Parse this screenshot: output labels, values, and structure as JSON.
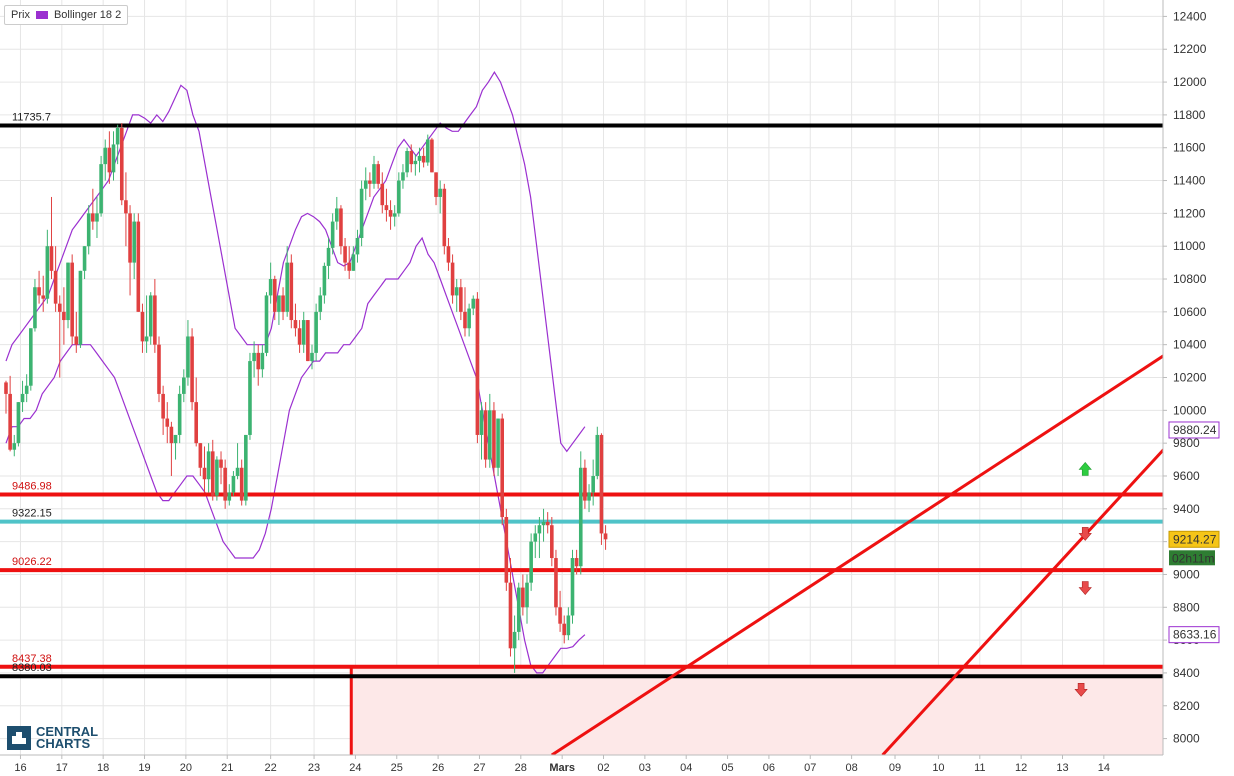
{
  "legend": {
    "price_label": "Prix",
    "indicator_label": "Bollinger 18 2",
    "indicator_color": "#9b30d0"
  },
  "logo": {
    "line1": "CENTRAL",
    "line2": "CHARTS",
    "icon": "central-charts-logo-icon"
  },
  "colors": {
    "up": "#3cb371",
    "down": "#e04040",
    "bollinger": "#9b30d0",
    "resistance": "#ee1111",
    "support_black": "#000000",
    "current_line": "#4fc3c8",
    "zone_fill": "#fde8e8"
  },
  "chart_data": {
    "type": "candlestick",
    "y_axis": {
      "min": 7900,
      "max": 12500,
      "ticks": [
        8000,
        8200,
        8400,
        8600,
        8800,
        9000,
        9200,
        9400,
        9600,
        9800,
        10000,
        10200,
        10400,
        10600,
        10800,
        11000,
        11200,
        11400,
        11600,
        11800,
        12000,
        12200,
        12400
      ]
    },
    "x_ticks": [
      {
        "label": "16",
        "pos": 3.5
      },
      {
        "label": "17",
        "pos": 13.5
      },
      {
        "label": "18",
        "pos": 23.5
      },
      {
        "label": "19",
        "pos": 33.5
      },
      {
        "label": "20",
        "pos": 43.5
      },
      {
        "label": "21",
        "pos": 53.5
      },
      {
        "label": "22",
        "pos": 64
      },
      {
        "label": "23",
        "pos": 74.5
      },
      {
        "label": "24",
        "pos": 84.5
      },
      {
        "label": "25",
        "pos": 94.5
      },
      {
        "label": "26",
        "pos": 104.5
      },
      {
        "label": "27",
        "pos": 114.5
      },
      {
        "label": "28",
        "pos": 124.5
      },
      {
        "label": "Mars",
        "pos": 134.5
      },
      {
        "label": "02",
        "pos": 144.5
      },
      {
        "label": "03",
        "pos": 154.5
      },
      {
        "label": "04",
        "pos": 164.5
      },
      {
        "label": "05",
        "pos": 174.5
      },
      {
        "label": "06",
        "pos": 184.5
      },
      {
        "label": "07",
        "pos": 194.5
      },
      {
        "label": "08",
        "pos": 204.5
      },
      {
        "label": "09",
        "pos": 215
      },
      {
        "label": "10",
        "pos": 225.5
      },
      {
        "label": "11",
        "pos": 235.5
      },
      {
        "label": "12",
        "pos": 245.5
      },
      {
        "label": "13",
        "pos": 255.5
      },
      {
        "label": "14",
        "pos": 265.5
      }
    ],
    "candles_ohlc": [
      [
        10170,
        10180,
        9980,
        10100
      ],
      [
        10100,
        10210,
        9750,
        9760
      ],
      [
        9760,
        9850,
        9720,
        9800
      ],
      [
        9800,
        10050,
        9780,
        10050
      ],
      [
        10050,
        10180,
        9990,
        10100
      ],
      [
        10100,
        10220,
        10050,
        10150
      ],
      [
        10150,
        10500,
        10120,
        10500
      ],
      [
        10500,
        10800,
        10480,
        10750
      ],
      [
        10750,
        10850,
        10650,
        10700
      ],
      [
        10700,
        10820,
        10600,
        10680
      ],
      [
        10680,
        11100,
        10650,
        11000
      ],
      [
        11000,
        11300,
        10800,
        10850
      ],
      [
        10850,
        11000,
        10600,
        10650
      ],
      [
        10650,
        10700,
        10200,
        10600
      ],
      [
        10600,
        10750,
        10400,
        10550
      ],
      [
        10550,
        10900,
        10500,
        10900
      ],
      [
        10900,
        10950,
        10400,
        10450
      ],
      [
        10450,
        10600,
        10350,
        10400
      ],
      [
        10400,
        10850,
        10380,
        10850
      ],
      [
        10850,
        11000,
        10800,
        11000
      ],
      [
        11000,
        11250,
        10950,
        11200
      ],
      [
        11200,
        11350,
        11100,
        11150
      ],
      [
        11150,
        11300,
        11050,
        11200
      ],
      [
        11200,
        11550,
        11180,
        11500
      ],
      [
        11500,
        11650,
        11400,
        11600
      ],
      [
        11600,
        11700,
        11380,
        11450
      ],
      [
        11450,
        11700,
        11400,
        11620
      ],
      [
        11620,
        11740,
        11500,
        11720
      ],
      [
        11720,
        11750,
        11250,
        11280
      ],
      [
        11280,
        11450,
        11000,
        11200
      ],
      [
        11200,
        11250,
        10700,
        10900
      ],
      [
        10900,
        11200,
        10800,
        11150
      ],
      [
        11150,
        11200,
        10600,
        10600
      ],
      [
        10600,
        10650,
        10350,
        10420
      ],
      [
        10420,
        10700,
        10350,
        10450
      ],
      [
        10450,
        10720,
        10400,
        10700
      ],
      [
        10700,
        10800,
        10350,
        10400
      ],
      [
        10400,
        10450,
        10050,
        10100
      ],
      [
        10100,
        10150,
        9850,
        9950
      ],
      [
        9950,
        10050,
        9800,
        9900
      ],
      [
        9900,
        9930,
        9600,
        9800
      ],
      [
        9800,
        9850,
        9700,
        9850
      ],
      [
        9850,
        10150,
        9800,
        10100
      ],
      [
        10100,
        10250,
        10050,
        10200
      ],
      [
        10200,
        10550,
        10150,
        10450
      ],
      [
        10450,
        10500,
        10000,
        10050
      ],
      [
        10050,
        10200,
        9780,
        9800
      ],
      [
        9800,
        9800,
        9600,
        9650
      ],
      [
        9650,
        9780,
        9500,
        9580
      ],
      [
        9580,
        9800,
        9500,
        9750
      ],
      [
        9750,
        9820,
        9450,
        9480
      ],
      [
        9480,
        9720,
        9450,
        9700
      ],
      [
        9700,
        9750,
        9550,
        9650
      ],
      [
        9650,
        9700,
        9400,
        9450
      ],
      [
        9450,
        9550,
        9420,
        9500
      ],
      [
        9500,
        9630,
        9480,
        9600
      ],
      [
        9600,
        9800,
        9580,
        9650
      ],
      [
        9650,
        9700,
        9420,
        9450
      ],
      [
        9450,
        9850,
        9420,
        9850
      ],
      [
        9850,
        10350,
        9820,
        10300
      ],
      [
        10300,
        10420,
        10200,
        10350
      ],
      [
        10350,
        10400,
        10150,
        10250
      ],
      [
        10250,
        10400,
        10200,
        10350
      ],
      [
        10350,
        10720,
        10330,
        10700
      ],
      [
        10700,
        10900,
        10650,
        10800
      ],
      [
        10800,
        10820,
        10550,
        10600
      ],
      [
        10600,
        10700,
        10520,
        10700
      ],
      [
        10700,
        10750,
        10550,
        10600
      ],
      [
        10600,
        11000,
        10570,
        10900
      ],
      [
        10900,
        10950,
        10500,
        10550
      ],
      [
        10550,
        10650,
        10450,
        10500
      ],
      [
        10500,
        10550,
        10350,
        10400
      ],
      [
        10400,
        10600,
        10350,
        10550
      ],
      [
        10550,
        10550,
        10300,
        10300
      ],
      [
        10300,
        10400,
        10250,
        10350
      ],
      [
        10350,
        10650,
        10300,
        10600
      ],
      [
        10600,
        10750,
        10550,
        10700
      ],
      [
        10700,
        10900,
        10650,
        10880
      ],
      [
        10880,
        11050,
        10800,
        10990
      ],
      [
        10990,
        11200,
        10950,
        11150
      ],
      [
        11150,
        11300,
        11100,
        11230
      ],
      [
        11230,
        11250,
        10950,
        11000
      ],
      [
        11000,
        11050,
        10850,
        10900
      ],
      [
        10900,
        11000,
        10800,
        10850
      ],
      [
        10850,
        11000,
        10850,
        10950
      ],
      [
        10950,
        11100,
        10900,
        11050
      ],
      [
        11050,
        11400,
        11000,
        11350
      ],
      [
        11350,
        11480,
        11280,
        11400
      ],
      [
        11400,
        11450,
        11300,
        11380
      ],
      [
        11380,
        11550,
        11350,
        11500
      ],
      [
        11500,
        11520,
        11350,
        11380
      ],
      [
        11380,
        11450,
        11200,
        11250
      ],
      [
        11250,
        11350,
        11150,
        11220
      ],
      [
        11220,
        11280,
        11100,
        11180
      ],
      [
        11180,
        11250,
        11120,
        11200
      ],
      [
        11200,
        11450,
        11180,
        11400
      ],
      [
        11400,
        11500,
        11350,
        11450
      ],
      [
        11450,
        11600,
        11420,
        11580
      ],
      [
        11580,
        11620,
        11450,
        11500
      ],
      [
        11500,
        11560,
        11430,
        11520
      ],
      [
        11520,
        11600,
        11450,
        11550
      ],
      [
        11550,
        11600,
        11480,
        11510
      ],
      [
        11510,
        11680,
        11490,
        11650
      ],
      [
        11650,
        11660,
        11450,
        11450
      ],
      [
        11450,
        11450,
        11250,
        11300
      ],
      [
        11300,
        11400,
        11200,
        11350
      ],
      [
        11350,
        11380,
        10950,
        11000
      ],
      [
        11000,
        11050,
        10850,
        10900
      ],
      [
        10900,
        10950,
        10650,
        10700
      ],
      [
        10700,
        10800,
        10600,
        10750
      ],
      [
        10750,
        10800,
        10550,
        10600
      ],
      [
        10600,
        10750,
        10450,
        10500
      ],
      [
        10500,
        10650,
        10450,
        10620
      ],
      [
        10620,
        10700,
        10580,
        10680
      ],
      [
        10680,
        10720,
        9800,
        9850
      ],
      [
        9850,
        10050,
        9700,
        10000
      ],
      [
        10000,
        10050,
        9650,
        9700
      ],
      [
        9700,
        10100,
        9650,
        10000
      ],
      [
        10000,
        10050,
        9600,
        9650
      ],
      [
        9650,
        9950,
        9600,
        9950
      ],
      [
        9950,
        9980,
        9300,
        9350
      ],
      [
        9350,
        9400,
        8900,
        8950
      ],
      [
        8950,
        9100,
        8500,
        8550
      ],
      [
        8550,
        8750,
        8400,
        8650
      ],
      [
        8650,
        8950,
        8600,
        8920
      ],
      [
        8920,
        9000,
        8750,
        8800
      ],
      [
        8800,
        9000,
        8700,
        8950
      ],
      [
        8950,
        9250,
        8900,
        9200
      ],
      [
        9200,
        9300,
        9100,
        9250
      ],
      [
        9250,
        9350,
        9100,
        9300
      ],
      [
        9300,
        9400,
        9200,
        9320
      ],
      [
        9320,
        9380,
        9250,
        9300
      ],
      [
        9300,
        9350,
        9050,
        9100
      ],
      [
        9100,
        9150,
        8750,
        8800
      ],
      [
        8800,
        8900,
        8650,
        8700
      ],
      [
        8700,
        8750,
        8580,
        8630
      ],
      [
        8630,
        8800,
        8600,
        8750
      ],
      [
        8750,
        9150,
        8700,
        9100
      ],
      [
        9100,
        9150,
        9000,
        9050
      ],
      [
        9050,
        9750,
        9000,
        9650
      ],
      [
        9650,
        9700,
        9400,
        9450
      ],
      [
        9450,
        9550,
        9380,
        9500
      ],
      [
        9500,
        9700,
        9420,
        9600
      ],
      [
        9600,
        9900,
        9580,
        9850
      ],
      [
        9850,
        9860,
        9180,
        9250
      ],
      [
        9250,
        9300,
        9150,
        9214
      ]
    ],
    "bollinger": {
      "upper": [
        10300,
        10400,
        10450,
        10500,
        10550,
        10600,
        10650,
        10700,
        10800,
        10900,
        11000,
        11100,
        11150,
        11200,
        11250,
        11300,
        11350,
        11400,
        11500,
        11600,
        11700,
        11800,
        11800,
        11780,
        11750,
        11800,
        11760,
        11820,
        11900,
        11980,
        11950,
        11800,
        11700,
        11500,
        11300,
        11100,
        10900,
        10700,
        10500,
        10450,
        10400,
        10400,
        10400,
        10400,
        10500,
        10700,
        10900,
        11000,
        11100,
        11180,
        11200,
        11180,
        11150,
        11100,
        11000,
        10900,
        10880,
        10900,
        11000,
        11100,
        11200,
        11300,
        11350,
        11400,
        11500,
        11600,
        11650,
        11600,
        11550,
        11600,
        11650,
        11700,
        11750,
        11720,
        11700,
        11700,
        11750,
        11800,
        11850,
        11950,
        12000,
        12060,
        12000,
        11900,
        11800,
        11650,
        11500,
        11300,
        11000,
        10700,
        10400,
        10100,
        9800,
        9750,
        9800,
        9850,
        9900
      ],
      "lower": [
        9800,
        9900,
        9900,
        9950,
        9950,
        10000,
        10100,
        10150,
        10200,
        10300,
        10350,
        10400,
        10400,
        10400,
        10400,
        10350,
        10300,
        10250,
        10200,
        10100,
        10000,
        9900,
        9800,
        9700,
        9600,
        9500,
        9450,
        9450,
        9500,
        9550,
        9600,
        9600,
        9550,
        9500,
        9400,
        9300,
        9200,
        9150,
        9100,
        9100,
        9100,
        9100,
        9150,
        9250,
        9400,
        9600,
        9800,
        10000,
        10100,
        10200,
        10250,
        10300,
        10300,
        10350,
        10350,
        10350,
        10400,
        10400,
        10450,
        10500,
        10650,
        10700,
        10750,
        10800,
        10800,
        10800,
        10850,
        10900,
        11000,
        11050,
        10950,
        10900,
        10800,
        10700,
        10600,
        10500,
        10400,
        10300,
        10200,
        10000,
        9800,
        9600,
        9400,
        9200,
        9000,
        8800,
        8600,
        8450,
        8400,
        8400,
        8450,
        8500,
        8550,
        8550,
        8560,
        8600,
        8633
      ]
    },
    "levels": [
      {
        "value": 11735.7,
        "label": "11735.7",
        "color": "#000000"
      },
      {
        "value": 9486.98,
        "label": "9486.98",
        "color": "#ee1111"
      },
      {
        "value": 9322.15,
        "label": "9322.15",
        "color": "#4fc3c8"
      },
      {
        "value": 9026.22,
        "label": "9026.22",
        "color": "#ee1111"
      },
      {
        "value": 8437.38,
        "label": "8437.38",
        "color": "#ee1111"
      },
      {
        "value": 8380.03,
        "label": "8380.03",
        "color": "#000000"
      }
    ],
    "price_tags": [
      {
        "value": 9880.24,
        "label": "9880.24",
        "style": "bollinger"
      },
      {
        "value": 9214.27,
        "label": "9214.27",
        "style": "current"
      },
      {
        "value": 8633.16,
        "label": "8633.16",
        "style": "bollinger"
      }
    ],
    "countdown": "02h11m",
    "arrows": [
      {
        "dir": "up",
        "value": 9640,
        "pos": 261
      },
      {
        "dir": "down",
        "value": 9250,
        "pos": 261
      },
      {
        "dir": "down",
        "value": 8920,
        "pos": 261
      },
      {
        "dir": "down",
        "value": 8300,
        "pos": 260
      }
    ],
    "trendlines": [
      {
        "from": [
          132,
          7900
        ],
        "to": [
          281,
          10350
        ]
      },
      {
        "from": [
          212,
          7900
        ],
        "to": [
          281,
          9790
        ]
      }
    ],
    "zone": {
      "from_pos": 83.5,
      "top": 8437.38
    }
  }
}
